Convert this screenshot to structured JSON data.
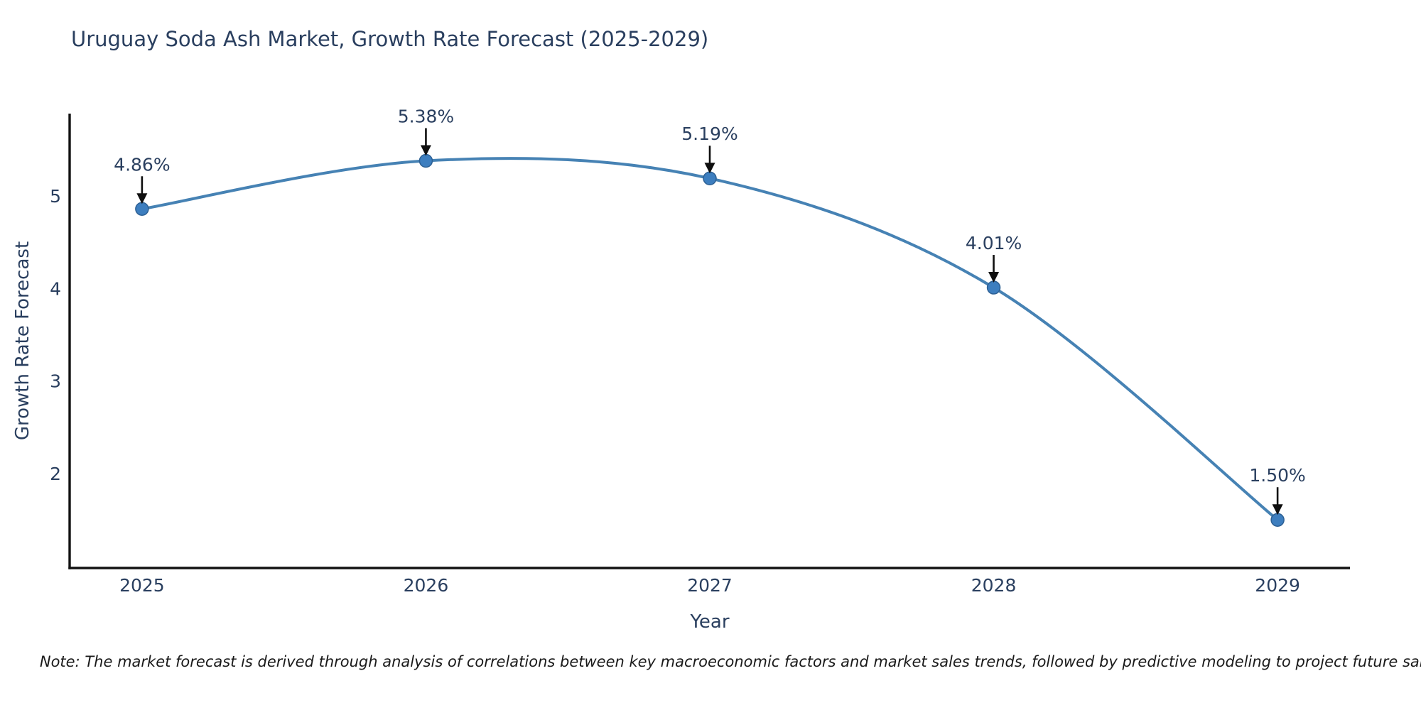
{
  "note": "Note: The market forecast is derived through analysis of correlations between key macroeconomic factors and market sales trends, followed by predictive modeling to project future sales.",
  "chart_data": {
    "type": "line",
    "line_shape": "spline",
    "title": "Uruguay Soda Ash Market, Growth Rate Forecast (2025-2029)",
    "xlabel": "Year",
    "ylabel": "Growth Rate Forecast",
    "x": [
      2025,
      2026,
      2027,
      2028,
      2029
    ],
    "series": [
      {
        "name": "Growth Rate Forecast",
        "values": [
          4.86,
          5.38,
          5.19,
          4.01,
          1.5
        ],
        "point_labels": [
          "4.86%",
          "5.38%",
          "5.19%",
          "4.01%",
          "1.50%"
        ]
      }
    ],
    "xticks": [
      2025,
      2026,
      2027,
      2028,
      2029
    ],
    "yticks": [
      2,
      3,
      4,
      5
    ],
    "xlim": [
      2024.745,
      2029.255
    ],
    "ylim": [
      0.98,
      5.89
    ],
    "grid": false,
    "legend": "none",
    "colors": {
      "line": "#4682b4",
      "marker_fill": "#3d7ebf",
      "marker_edge": "#2d6094",
      "axis_line": "#121212",
      "arrow": "#0f0f0f",
      "text": "#2a3f5f"
    }
  }
}
